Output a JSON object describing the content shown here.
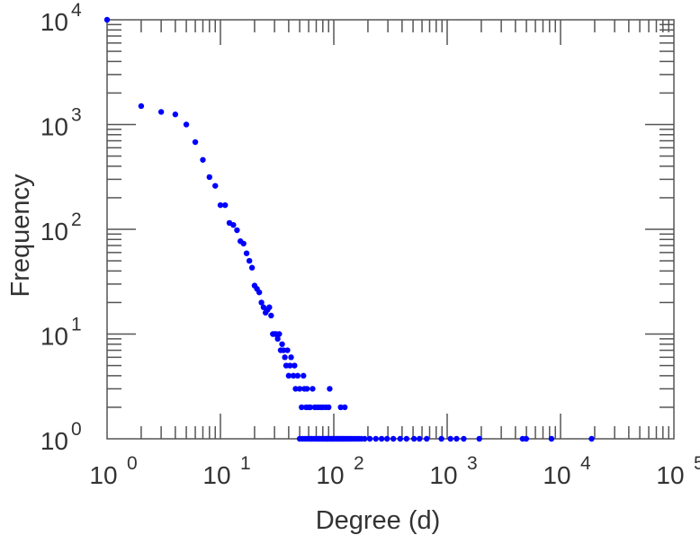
{
  "chart_data": {
    "type": "scatter",
    "title": "",
    "xlabel": "Degree (d)",
    "ylabel": "Frequency",
    "xscale": "log",
    "yscale": "log",
    "xlim": [
      1,
      100000
    ],
    "ylim": [
      1,
      10000
    ],
    "grid": false,
    "marker_color": "#0000ff",
    "x_ticks": [
      {
        "base": "10",
        "exp": "0",
        "value": 1
      },
      {
        "base": "10",
        "exp": "1",
        "value": 10
      },
      {
        "base": "10",
        "exp": "2",
        "value": 100
      },
      {
        "base": "10",
        "exp": "3",
        "value": 1000
      },
      {
        "base": "10",
        "exp": "4",
        "value": 10000
      },
      {
        "base": "10",
        "exp": "5",
        "value": 100000
      }
    ],
    "y_ticks": [
      {
        "base": "10",
        "exp": "0",
        "value": 1
      },
      {
        "base": "10",
        "exp": "1",
        "value": 10
      },
      {
        "base": "10",
        "exp": "2",
        "value": 100
      },
      {
        "base": "10",
        "exp": "3",
        "value": 1000
      },
      {
        "base": "10",
        "exp": "4",
        "value": 10000
      }
    ],
    "points": [
      [
        1,
        10000
      ],
      [
        2,
        1500
      ],
      [
        3,
        1320
      ],
      [
        4,
        1250
      ],
      [
        5,
        1000
      ],
      [
        6,
        680
      ],
      [
        7,
        460
      ],
      [
        8,
        315
      ],
      [
        9,
        260
      ],
      [
        10,
        170
      ],
      [
        11,
        170
      ],
      [
        12,
        115
      ],
      [
        13,
        110
      ],
      [
        14,
        98
      ],
      [
        15,
        77
      ],
      [
        16,
        73
      ],
      [
        17,
        59
      ],
      [
        18,
        50
      ],
      [
        19,
        43
      ],
      [
        20,
        29
      ],
      [
        21,
        27
      ],
      [
        22,
        25
      ],
      [
        23,
        20
      ],
      [
        24,
        18
      ],
      [
        25,
        16
      ],
      [
        26,
        17
      ],
      [
        27,
        18
      ],
      [
        28,
        15
      ],
      [
        29,
        10
      ],
      [
        30,
        10
      ],
      [
        31,
        10
      ],
      [
        32,
        9
      ],
      [
        33,
        10
      ],
      [
        34,
        7
      ],
      [
        35,
        8
      ],
      [
        36,
        7
      ],
      [
        37,
        6
      ],
      [
        38,
        5
      ],
      [
        39,
        7
      ],
      [
        40,
        4
      ],
      [
        41,
        5
      ],
      [
        42,
        6
      ],
      [
        44,
        4
      ],
      [
        45,
        5
      ],
      [
        46,
        3
      ],
      [
        48,
        4
      ],
      [
        50,
        3
      ],
      [
        52,
        2
      ],
      [
        54,
        4
      ],
      [
        55,
        3
      ],
      [
        57,
        2
      ],
      [
        58,
        3
      ],
      [
        60,
        2
      ],
      [
        62,
        2
      ],
      [
        65,
        3
      ],
      [
        68,
        2
      ],
      [
        72,
        2
      ],
      [
        76,
        2
      ],
      [
        80,
        2
      ],
      [
        85,
        2
      ],
      [
        90,
        2
      ],
      [
        92,
        3
      ],
      [
        115,
        2
      ],
      [
        125,
        2
      ],
      [
        50,
        1
      ],
      [
        53,
        1
      ],
      [
        56,
        1
      ],
      [
        59,
        1
      ],
      [
        62,
        1
      ],
      [
        64,
        1
      ],
      [
        67,
        1
      ],
      [
        70,
        1
      ],
      [
        73,
        1
      ],
      [
        75,
        1
      ],
      [
        78,
        1
      ],
      [
        81,
        1
      ],
      [
        84,
        1
      ],
      [
        87,
        1
      ],
      [
        89,
        1
      ],
      [
        93,
        1
      ],
      [
        96,
        1
      ],
      [
        99,
        1
      ],
      [
        103,
        1
      ],
      [
        107,
        1
      ],
      [
        110,
        1
      ],
      [
        114,
        1
      ],
      [
        118,
        1
      ],
      [
        122,
        1
      ],
      [
        127,
        1
      ],
      [
        132,
        1
      ],
      [
        137,
        1
      ],
      [
        143,
        1
      ],
      [
        150,
        1
      ],
      [
        158,
        1
      ],
      [
        166,
        1
      ],
      [
        175,
        1
      ],
      [
        187,
        1
      ],
      [
        208,
        1
      ],
      [
        235,
        1
      ],
      [
        264,
        1
      ],
      [
        295,
        1
      ],
      [
        335,
        1
      ],
      [
        385,
        1
      ],
      [
        438,
        1
      ],
      [
        510,
        1
      ],
      [
        570,
        1
      ],
      [
        660,
        1
      ],
      [
        890,
        1
      ],
      [
        1070,
        1
      ],
      [
        1210,
        1
      ],
      [
        1400,
        1
      ],
      [
        1920,
        1
      ],
      [
        4630,
        1
      ],
      [
        4980,
        1
      ],
      [
        8320,
        1
      ],
      [
        18800,
        1
      ]
    ]
  }
}
